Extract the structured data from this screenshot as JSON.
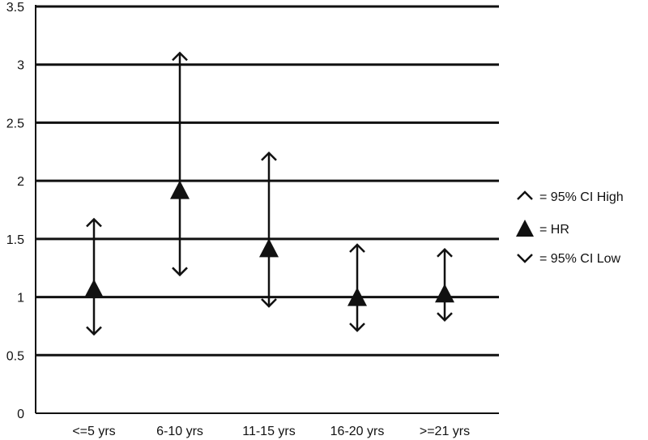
{
  "chart_data": {
    "type": "scatter",
    "title": "",
    "xlabel": "",
    "ylabel": "",
    "ylim": [
      0,
      3.5
    ],
    "y_ticks": [
      "0",
      "0.5",
      "1",
      "1.5",
      "2",
      "2.5",
      "3",
      "3.5"
    ],
    "grid": true,
    "categories": [
      "<=5 yrs",
      "6-10 yrs",
      "11-15 yrs",
      "16-20 yrs",
      ">=21 yrs"
    ],
    "hr": [
      1.07,
      1.92,
      1.42,
      1.0,
      1.03
    ],
    "ci_high": [
      1.67,
      3.1,
      2.24,
      1.45,
      1.41
    ],
    "ci_low": [
      0.68,
      1.19,
      0.92,
      0.71,
      0.8
    ],
    "legend_position": "right",
    "legend": [
      {
        "symbol": "ci-high",
        "label": "= 95% CI High"
      },
      {
        "symbol": "hr",
        "label": "= HR"
      },
      {
        "symbol": "ci-low",
        "label": "= 95% CI Low"
      }
    ]
  }
}
